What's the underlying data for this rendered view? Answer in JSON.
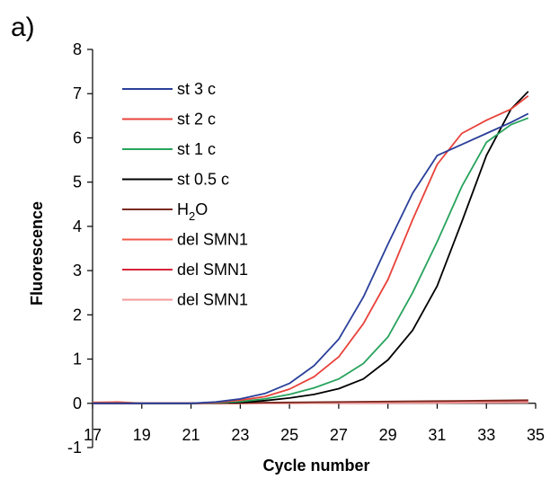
{
  "panel_label": "a)",
  "chart_data": {
    "type": "line",
    "xlabel": "Cycle number",
    "ylabel": "Fluorescence",
    "xlim": [
      17,
      35
    ],
    "ylim": [
      -1,
      8
    ],
    "xticks": [
      17,
      19,
      21,
      23,
      25,
      27,
      29,
      31,
      33,
      35
    ],
    "yticks": [
      -1,
      0,
      1,
      2,
      3,
      4,
      5,
      6,
      7,
      8
    ],
    "grid": false,
    "legend_position": "upper-left",
    "series": [
      {
        "name": "st 3 c",
        "color": "#2a3f9a",
        "x": [
          17,
          18,
          19,
          20,
          21,
          22,
          23,
          24,
          25,
          26,
          27,
          28,
          29,
          30,
          31,
          32,
          33,
          34,
          34.7
        ],
        "y": [
          0,
          0,
          0,
          0,
          0,
          0.03,
          0.1,
          0.22,
          0.45,
          0.85,
          1.45,
          2.4,
          3.6,
          4.75,
          5.6,
          5.85,
          6.1,
          6.35,
          6.55
        ]
      },
      {
        "name": "st 2 c",
        "color": "#e8423a",
        "x": [
          17,
          18,
          19,
          20,
          21,
          22,
          23,
          24,
          25,
          26,
          27,
          28,
          29,
          30,
          31,
          32,
          33,
          34,
          34.7
        ],
        "y": [
          0,
          0,
          0,
          0,
          0,
          0.02,
          0.07,
          0.15,
          0.32,
          0.6,
          1.05,
          1.8,
          2.8,
          4.15,
          5.4,
          6.1,
          6.4,
          6.65,
          6.95
        ]
      },
      {
        "name": "st 1 c",
        "color": "#27a35c",
        "x": [
          17,
          18,
          19,
          20,
          21,
          22,
          23,
          24,
          25,
          26,
          27,
          28,
          29,
          30,
          31,
          32,
          33,
          34,
          34.7
        ],
        "y": [
          0,
          0,
          0,
          0,
          0,
          0.01,
          0.04,
          0.1,
          0.2,
          0.35,
          0.55,
          0.9,
          1.5,
          2.5,
          3.65,
          4.9,
          5.9,
          6.3,
          6.45
        ]
      },
      {
        "name": "st 0.5 c",
        "color": "#000000",
        "x": [
          17,
          18,
          19,
          20,
          21,
          22,
          23,
          24,
          25,
          26,
          27,
          28,
          29,
          30,
          31,
          32,
          33,
          34,
          34.7
        ],
        "y": [
          0,
          0,
          0,
          0,
          0,
          0.01,
          0.02,
          0.06,
          0.12,
          0.2,
          0.33,
          0.55,
          0.98,
          1.65,
          2.65,
          4.1,
          5.6,
          6.65,
          7.05
        ]
      },
      {
        "name": "H2O",
        "name_base": "H",
        "name_sub": "2",
        "name_tail": "O",
        "color": "#7a2a1f",
        "x": [
          17,
          19,
          21,
          23,
          25,
          27,
          29,
          31,
          33,
          34.7
        ],
        "y": [
          0,
          0,
          0,
          0.01,
          0.02,
          0.03,
          0.04,
          0.05,
          0.06,
          0.07
        ]
      },
      {
        "name": "del SMN1",
        "color": "#f05a4a",
        "x": [
          17,
          18,
          19,
          21,
          23,
          25,
          27,
          29,
          31,
          33,
          34.7
        ],
        "y": [
          0.02,
          0.03,
          0,
          0,
          0,
          0.01,
          0.01,
          0.02,
          0.02,
          0.03,
          0.03
        ]
      },
      {
        "name": "del SMN1",
        "color": "#d8243a",
        "x": [
          17,
          19,
          21,
          23,
          25,
          27,
          29,
          31,
          33,
          34.7
        ],
        "y": [
          0,
          0,
          0,
          0,
          0.01,
          0.01,
          0.01,
          0.02,
          0.02,
          0.03
        ]
      },
      {
        "name": "del SMN1",
        "color": "#f59a9a",
        "x": [
          17,
          19,
          21,
          23,
          25,
          27,
          29,
          31,
          33,
          34.7
        ],
        "y": [
          0,
          0,
          0,
          0,
          0,
          0.01,
          0.01,
          0.01,
          0.02,
          0.02
        ]
      }
    ]
  }
}
